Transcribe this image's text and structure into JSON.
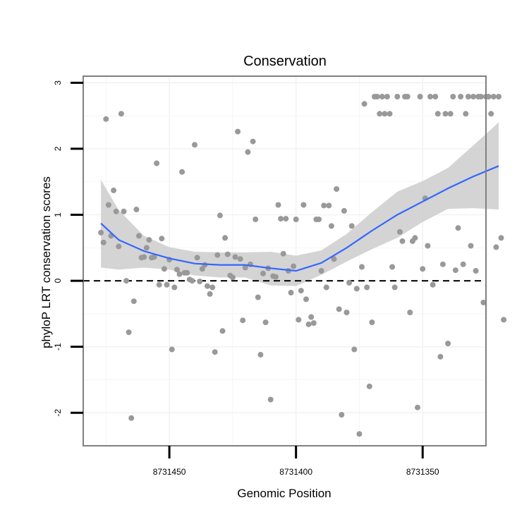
{
  "chart_data": {
    "type": "scatter",
    "title": "Conservation",
    "xlabel": "Genomic Position",
    "ylabel": "phyloP LRT conservation scores",
    "x_reversed": true,
    "xlim": [
      8731484,
      8731325
    ],
    "ylim": [
      -2.5,
      3.1
    ],
    "x_ticks": [
      8731450,
      8731400,
      8731350
    ],
    "x_tick_labels": [
      "8731450",
      "8731400",
      "8731350"
    ],
    "y_ticks": [
      -2,
      -1,
      0,
      1,
      2,
      3
    ],
    "y_tick_labels": [
      "-2",
      "-1",
      "0",
      "1",
      "2",
      "3"
    ],
    "grid": true,
    "reference_line": {
      "y": 0,
      "style": "dashed"
    },
    "colors": {
      "points": "#999999",
      "smooth_line": "#3366FF",
      "ribbon": "#CCCCCC",
      "panel_border": "#808080"
    },
    "points": [
      [
        8731477,
        0.73
      ],
      [
        8731476,
        0.58
      ],
      [
        8731475,
        2.45
      ],
      [
        8731474,
        1.15
      ],
      [
        8731473,
        0.68
      ],
      [
        8731472,
        1.37
      ],
      [
        8731471,
        1.05
      ],
      [
        8731470,
        0.52
      ],
      [
        8731469,
        2.53
      ],
      [
        8731468,
        1.05
      ],
      [
        8731467,
        0.0
      ],
      [
        8731466,
        -0.78
      ],
      [
        8731465,
        -2.08
      ],
      [
        8731464,
        -0.31
      ],
      [
        8731463,
        1.08
      ],
      [
        8731462,
        0.68
      ],
      [
        8731461,
        0.35
      ],
      [
        8731460,
        0.36
      ],
      [
        8731459,
        0.5
      ],
      [
        8731458,
        0.62
      ],
      [
        8731457,
        0.35
      ],
      [
        8731456,
        0.36
      ],
      [
        8731455,
        1.78
      ],
      [
        8731454,
        -0.06
      ],
      [
        8731453,
        0.64
      ],
      [
        8731452,
        0.18
      ],
      [
        8731451,
        -0.06
      ],
      [
        8731450,
        0.32
      ],
      [
        8731449,
        -1.04
      ],
      [
        8731448,
        -0.1
      ],
      [
        8731447,
        0.17
      ],
      [
        8731446,
        0.1
      ],
      [
        8731445,
        1.65
      ],
      [
        8731444,
        0.12
      ],
      [
        8731443,
        0.12
      ],
      [
        8731442,
        0.02
      ],
      [
        8731441,
        0.0
      ],
      [
        8731440,
        2.06
      ],
      [
        8731439,
        0.35
      ],
      [
        8731438,
        -0.01
      ],
      [
        8731437,
        0.18
      ],
      [
        8731436,
        0.24
      ],
      [
        8731435,
        -0.08
      ],
      [
        8731434,
        -0.2
      ],
      [
        8731433,
        -0.1
      ],
      [
        8731432,
        -1.08
      ],
      [
        8731431,
        0.39
      ],
      [
        8731430,
        0.99
      ],
      [
        8731429,
        -0.76
      ],
      [
        8731428,
        0.65
      ],
      [
        8731427,
        0.4
      ],
      [
        8731426,
        0.08
      ],
      [
        8731425,
        0.05
      ],
      [
        8731424,
        0.36
      ],
      [
        8731423,
        2.26
      ],
      [
        8731422,
        0.33
      ],
      [
        8731421,
        -0.6
      ],
      [
        8731420,
        0.2
      ],
      [
        8731419,
        1.95
      ],
      [
        8731418,
        0.25
      ],
      [
        8731417,
        2.11
      ],
      [
        8731416,
        0.93
      ],
      [
        8731415,
        -0.25
      ],
      [
        8731414,
        -1.12
      ],
      [
        8731413,
        0.11
      ],
      [
        8731412,
        -0.63
      ],
      [
        8731411,
        0.19
      ],
      [
        8731410,
        -1.8
      ],
      [
        8731409,
        0.07
      ],
      [
        8731408,
        0.06
      ],
      [
        8731407,
        1.15
      ],
      [
        8731406,
        0.94
      ],
      [
        8731405,
        0.41
      ],
      [
        8731404,
        0.94
      ],
      [
        8731403,
        0.15
      ],
      [
        8731402,
        -0.18
      ],
      [
        8731401,
        0.22
      ],
      [
        8731400,
        0.93
      ],
      [
        8731399,
        -0.59
      ],
      [
        8731398,
        -0.15
      ],
      [
        8731397,
        1.15
      ],
      [
        8731396,
        -0.28
      ],
      [
        8731395,
        -0.66
      ],
      [
        8731394,
        -0.55
      ],
      [
        8731393,
        -0.64
      ],
      [
        8731392,
        0.93
      ],
      [
        8731391,
        0.93
      ],
      [
        8731390,
        0.15
      ],
      [
        8731389,
        1.14
      ],
      [
        8731388,
        -0.1
      ],
      [
        8731387,
        1.14
      ],
      [
        8731386,
        0.83
      ],
      [
        8731385,
        0.33
      ],
      [
        8731384,
        1.39
      ],
      [
        8731383,
        -0.43
      ],
      [
        8731382,
        -2.03
      ],
      [
        8731381,
        1.06
      ],
      [
        8731380,
        -0.48
      ],
      [
        8731379,
        -0.03
      ],
      [
        8731378,
        0.83
      ],
      [
        8731377,
        -1.04
      ],
      [
        8731376,
        -0.12
      ],
      [
        8731375,
        -2.32
      ],
      [
        8731374,
        0.21
      ],
      [
        8731373,
        2.68
      ],
      [
        8731372,
        -0.1
      ],
      [
        8731371,
        -1.6
      ],
      [
        8731370,
        -0.63
      ],
      [
        8731369,
        2.79
      ],
      [
        8731368,
        2.79
      ],
      [
        8731367,
        2.53
      ],
      [
        8731366,
        2.79
      ],
      [
        8731365,
        2.53
      ],
      [
        8731364,
        2.79
      ],
      [
        8731363,
        2.53
      ],
      [
        8731362,
        0.21
      ],
      [
        8731361,
        -0.1
      ],
      [
        8731360,
        2.79
      ],
      [
        8731359,
        0.74
      ],
      [
        8731358,
        0.6
      ],
      [
        8731357,
        2.79
      ],
      [
        8731356,
        2.79
      ],
      [
        8731355,
        -0.48
      ],
      [
        8731354,
        0.6
      ],
      [
        8731353,
        0.65
      ],
      [
        8731352,
        -1.92
      ],
      [
        8731351,
        2.79
      ],
      [
        8731350,
        0.18
      ],
      [
        8731349,
        1.25
      ],
      [
        8731348,
        0.53
      ],
      [
        8731347,
        2.79
      ],
      [
        8731346,
        -0.06
      ],
      [
        8731345,
        2.79
      ],
      [
        8731344,
        2.53
      ],
      [
        8731343,
        -1.15
      ],
      [
        8731342,
        0.25
      ],
      [
        8731341,
        2.53
      ],
      [
        8731340,
        -0.95
      ],
      [
        8731339,
        2.53
      ],
      [
        8731338,
        2.79
      ],
      [
        8731337,
        0.16
      ],
      [
        8731336,
        0.8
      ],
      [
        8731335,
        2.79
      ],
      [
        8731334,
        0.25
      ],
      [
        8731333,
        2.53
      ],
      [
        8731332,
        2.79
      ],
      [
        8731331,
        0.53
      ],
      [
        8731330,
        2.79
      ],
      [
        8731329,
        0.15
      ],
      [
        8731328,
        2.79
      ],
      [
        8731327,
        2.79
      ],
      [
        8731326,
        -0.33
      ],
      [
        8731325,
        2.79
      ],
      [
        8731324,
        2.79
      ],
      [
        8731323,
        2.53
      ],
      [
        8731322,
        2.79
      ],
      [
        8731321,
        0.51
      ],
      [
        8731320,
        2.79
      ],
      [
        8731319,
        0.65
      ],
      [
        8731318,
        -0.59
      ]
    ],
    "smooth": {
      "x": [
        8731477,
        8731470,
        8731460,
        8731450,
        8731440,
        8731430,
        8731420,
        8731410,
        8731400,
        8731390,
        8731380,
        8731370,
        8731360,
        8731350,
        8731340,
        8731330,
        8731320
      ],
      "y": [
        0.87,
        0.62,
        0.45,
        0.34,
        0.26,
        0.24,
        0.24,
        0.19,
        0.15,
        0.27,
        0.5,
        0.76,
        1.0,
        1.2,
        1.4,
        1.58,
        1.74
      ],
      "lower": [
        0.2,
        0.17,
        0.2,
        0.17,
        0.08,
        0.05,
        0.05,
        -0.07,
        -0.08,
        0.09,
        0.29,
        0.48,
        0.65,
        0.89,
        1.09,
        1.1,
        1.08
      ],
      "upper": [
        1.53,
        1.07,
        0.68,
        0.51,
        0.44,
        0.43,
        0.43,
        0.44,
        0.38,
        0.46,
        0.71,
        1.04,
        1.35,
        1.51,
        1.71,
        2.05,
        2.4
      ]
    }
  }
}
